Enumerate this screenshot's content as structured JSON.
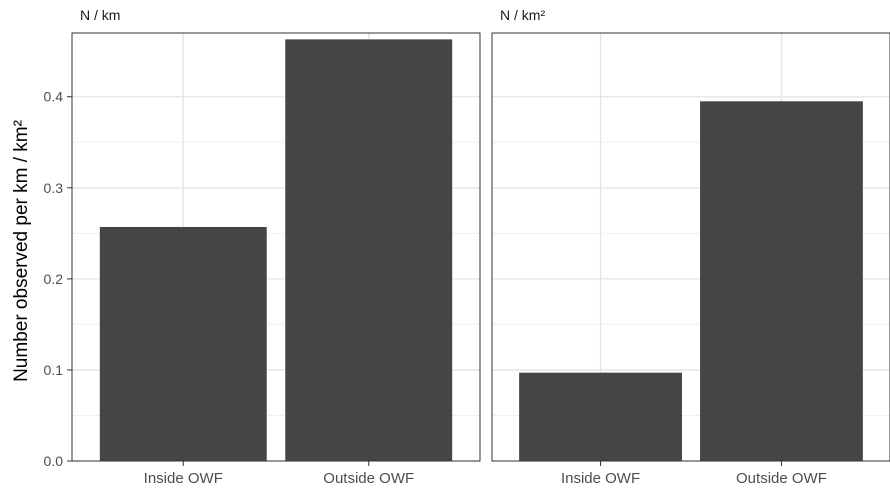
{
  "chart_data": {
    "type": "bar",
    "ylabel": "Number observed per km / km²",
    "ylim": [
      0,
      0.47
    ],
    "yticks": [
      0.0,
      0.1,
      0.2,
      0.3,
      0.4
    ],
    "ytick_labels": [
      "0.0",
      "0.1",
      "0.2",
      "0.3",
      "0.4"
    ],
    "grid": true,
    "bar_color": "#454545",
    "categories": [
      "Inside OWF",
      "Outside OWF"
    ],
    "panels": [
      {
        "title": "N / km",
        "values": [
          0.257,
          0.463
        ]
      },
      {
        "title": "N / km²",
        "values": [
          0.097,
          0.395
        ]
      }
    ]
  }
}
